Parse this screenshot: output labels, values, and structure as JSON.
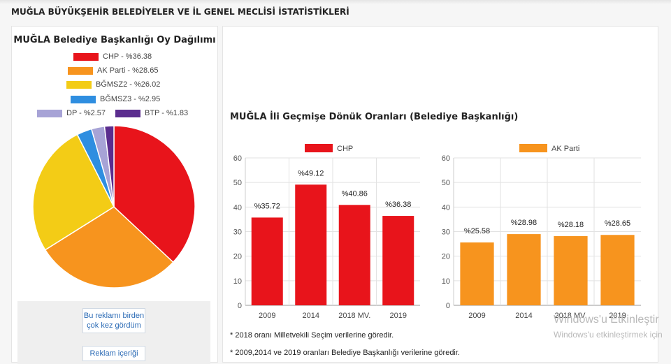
{
  "page": {
    "title": "MUĞLA BÜYÜKŞEHİR BELEDİYELER VE İL GENEL MECLİSİ İSTATİSTİKLERİ"
  },
  "pie": {
    "title": "MUĞLA Belediye Başkanlığı Oy Dağılımı",
    "legend": [
      {
        "label": "CHP - %36.38",
        "party": "CHP",
        "value": 36.38,
        "color": "#e8141b"
      },
      {
        "label": "AK Parti - %28.65",
        "party": "AK Parti",
        "value": 28.65,
        "color": "#f7941e"
      },
      {
        "label": "BĞMSZ2 - %26.02",
        "party": "BĞMSZ2",
        "value": 26.02,
        "color": "#f3cc16"
      },
      {
        "label": "BĞMSZ3 - %2.95",
        "party": "BĞMSZ3",
        "value": 2.95,
        "color": "#2f8ee0"
      },
      {
        "label": "DP - %2.57",
        "party": "DP",
        "value": 2.57,
        "color": "#a7a3d6"
      },
      {
        "label": "BTP - %1.83",
        "party": "BTP",
        "value": 1.83,
        "color": "#5b2d8e"
      }
    ]
  },
  "ads": {
    "button1": "Bu reklamı birden çok kez gördüm",
    "button2": "Reklam içeriği"
  },
  "history": {
    "title": "MUĞLA İli Geçmişe Dönük Oranları (Belediye Başkanlığı)"
  },
  "chart_data": [
    {
      "type": "bar",
      "title": "",
      "legend": "CHP",
      "color": "#e8141b",
      "categories": [
        "2009",
        "2014",
        "2018 MV.",
        "2019"
      ],
      "values": [
        35.72,
        49.12,
        40.86,
        36.38
      ],
      "labels": [
        "%35.72",
        "%49.12",
        "%40.86",
        "%36.38"
      ],
      "yticks": [
        "0",
        "10",
        "20",
        "30",
        "40",
        "50",
        "60"
      ],
      "ylim": [
        0,
        60
      ]
    },
    {
      "type": "bar",
      "title": "",
      "legend": "AK Parti",
      "color": "#f7941e",
      "categories": [
        "2009",
        "2014",
        "2018 MV.",
        "2019"
      ],
      "values": [
        25.58,
        28.98,
        28.18,
        28.65
      ],
      "labels": [
        "%25.58",
        "%28.98",
        "%28.18",
        "%28.65"
      ],
      "yticks": [
        "0",
        "10",
        "20",
        "30",
        "40",
        "50",
        "60"
      ],
      "ylim": [
        0,
        60
      ]
    }
  ],
  "notes": {
    "note1": "* 2018 oranı Milletvekili Seçim verilerine göredir.",
    "note2": "* 2009,2014 ve 2019 oranları Belediye Başkanlığı verilerine göredir."
  },
  "watermark": {
    "line1": "Windows'u Etkinleştir",
    "line2": "Windows'u etkinleştirmek için"
  }
}
